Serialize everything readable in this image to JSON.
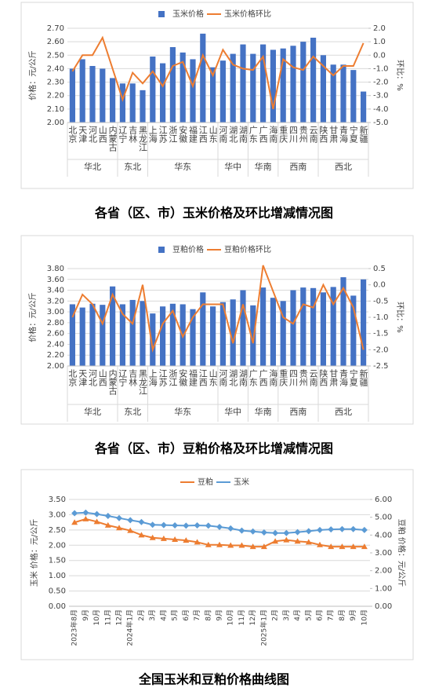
{
  "chart_data": [
    {
      "type": "bar_line",
      "title": "各省（区、市）玉米价格及环比增减情况图",
      "ylabel": "价格：元/公斤",
      "y2label": "环比：%",
      "categories": [
        "北京",
        "天津",
        "河北",
        "山西",
        "内蒙古",
        "辽宁",
        "吉林",
        "黑龙江",
        "上海",
        "江苏",
        "浙江",
        "安徽",
        "福建",
        "江西",
        "山东",
        "河南",
        "湖北",
        "湖南",
        "广东",
        "广西",
        "海南",
        "重庆",
        "四川",
        "贵州",
        "云南",
        "陕西",
        "甘肃",
        "青海",
        "宁夏",
        "新疆"
      ],
      "regions": [
        "华北",
        "华北",
        "华北",
        "华北",
        "华北",
        "东北",
        "东北",
        "东北",
        "华东",
        "华东",
        "华东",
        "华东",
        "华东",
        "华东",
        "华东",
        "华中",
        "华中",
        "华中",
        "华南",
        "华南",
        "华南",
        "西南",
        "西南",
        "西南",
        "西南",
        "西北",
        "西北",
        "西北",
        "西北",
        "西北"
      ],
      "series": [
        {
          "name": "玉米价格",
          "color": "#4472c4",
          "values": [
            2.4,
            2.47,
            2.42,
            2.4,
            2.33,
            2.29,
            2.29,
            2.24,
            2.49,
            2.44,
            2.56,
            2.52,
            2.47,
            2.66,
            2.41,
            2.46,
            2.51,
            2.58,
            2.51,
            2.58,
            2.54,
            2.55,
            2.57,
            2.6,
            2.63,
            2.5,
            2.43,
            2.43,
            2.39,
            2.23
          ]
        },
        {
          "name": "玉米价格环比",
          "color": "#ed7d31",
          "axis": "y2",
          "values": [
            -1.2,
            0.0,
            0.0,
            1.3,
            -1.0,
            -3.3,
            -1.3,
            -2.1,
            -1.2,
            -2.3,
            -0.8,
            -0.5,
            -2.3,
            0.0,
            -1.5,
            0.4,
            -0.7,
            -1.0,
            -1.1,
            -0.1,
            -4.0,
            -0.3,
            -0.9,
            -1.1,
            -0.1,
            -0.8,
            -1.5,
            -0.8,
            -0.8,
            0.9
          ]
        }
      ],
      "ylim": [
        2.0,
        2.7
      ],
      "yticks": [
        {
          "value": 2.0,
          "label": "2.00"
        },
        {
          "value": 2.1,
          "label": "2.10"
        },
        {
          "value": 2.2,
          "label": "2.20"
        },
        {
          "value": 2.3,
          "label": "2.30"
        },
        {
          "value": 2.4,
          "label": "2.40"
        },
        {
          "value": 2.5,
          "label": "2.50"
        },
        {
          "value": 2.6,
          "label": "2.60"
        },
        {
          "value": 2.7,
          "label": "2.70"
        }
      ],
      "y2lim": [
        -5,
        2
      ],
      "y2ticks": [
        {
          "value": 2,
          "label": "2.0"
        },
        {
          "value": 1,
          "label": "1.0"
        },
        {
          "value": 0,
          "label": "0.0"
        },
        {
          "value": -1,
          "label": "-1.0"
        },
        {
          "value": -2,
          "label": "-2.0"
        },
        {
          "value": -3,
          "label": "-3.0"
        },
        {
          "value": -4,
          "label": "-4.0"
        },
        {
          "value": -5,
          "label": "-5.0"
        }
      ]
    },
    {
      "type": "bar_line",
      "title": "各省（区、市）豆粕价格及环比增减情况图",
      "ylabel": "价格：元/公斤",
      "y2label": "环比：%",
      "categories": [
        "北京",
        "天津",
        "河北",
        "山西",
        "内蒙古",
        "辽宁",
        "吉林",
        "黑龙江",
        "上海",
        "江苏",
        "浙江",
        "安徽",
        "福建",
        "江西",
        "山东",
        "河南",
        "湖北",
        "湖南",
        "广东",
        "广西",
        "海南",
        "重庆",
        "四川",
        "贵州",
        "云南",
        "陕西",
        "甘肃",
        "青海",
        "宁夏",
        "新疆"
      ],
      "regions": [
        "华北",
        "华北",
        "华北",
        "华北",
        "华北",
        "东北",
        "东北",
        "东北",
        "华东",
        "华东",
        "华东",
        "华东",
        "华东",
        "华东",
        "华东",
        "华中",
        "华中",
        "华中",
        "华南",
        "华南",
        "华南",
        "西南",
        "西南",
        "西南",
        "西南",
        "西北",
        "西北",
        "西北",
        "西北",
        "西北"
      ],
      "series": [
        {
          "name": "豆粕价格",
          "color": "#4472c4",
          "values": [
            3.14,
            3.08,
            3.15,
            3.13,
            3.47,
            3.14,
            3.22,
            3.2,
            2.97,
            3.1,
            3.15,
            3.14,
            3.05,
            3.36,
            3.1,
            3.18,
            3.23,
            3.4,
            3.12,
            3.45,
            3.26,
            3.2,
            3.4,
            3.45,
            3.44,
            3.36,
            3.46,
            3.64,
            3.3,
            3.6
          ]
        },
        {
          "name": "豆粕价格环比",
          "color": "#ed7d31",
          "axis": "y2",
          "values": [
            -1.0,
            -0.3,
            -0.6,
            -1.2,
            -0.3,
            -0.9,
            -1.2,
            0.0,
            -2.0,
            -1.2,
            -0.8,
            -1.6,
            -1.0,
            -0.6,
            -0.6,
            -0.6,
            -1.8,
            -0.6,
            -1.8,
            0.6,
            -0.2,
            -1.0,
            -1.2,
            -0.6,
            -0.7,
            0.0,
            -0.6,
            -0.1,
            -0.7,
            -2.0
          ]
        }
      ],
      "ylim": [
        2.0,
        3.8
      ],
      "yticks": [
        {
          "value": 2.0,
          "label": "2.00"
        },
        {
          "value": 2.2,
          "label": "2.20"
        },
        {
          "value": 2.4,
          "label": "2.40"
        },
        {
          "value": 2.6,
          "label": "2.60"
        },
        {
          "value": 2.8,
          "label": "2.80"
        },
        {
          "value": 3.0,
          "label": "3.00"
        },
        {
          "value": 3.2,
          "label": "3.20"
        },
        {
          "value": 3.4,
          "label": "3.40"
        },
        {
          "value": 3.6,
          "label": "3.60"
        },
        {
          "value": 3.8,
          "label": "3.80"
        }
      ],
      "y2lim": [
        -2.5,
        0.5
      ],
      "y2ticks": [
        0.5,
        {
          "value": 0,
          "label": "0.0"
        },
        -0.5,
        {
          "value": -1,
          "label": "-1.0"
        },
        -1.5,
        {
          "value": -2,
          "label": "-2.0"
        },
        -2.5
      ]
    },
    {
      "type": "line",
      "title": "全国玉米和豆粕价格曲线图",
      "ylabel": "玉米 价格：元/公斤",
      "y2label": "豆粕 价格：元/公斤",
      "categories": [
        "2023年8月",
        "9月",
        "10月",
        "11月",
        "12月",
        "2024年1月",
        "2月",
        "3月",
        "4月",
        "5月",
        "6月",
        "7月",
        "8月",
        "9月",
        "10月",
        "11月",
        "12月",
        "2025年1月",
        "2月",
        "3月",
        "4月",
        "5月",
        "6月",
        "7月",
        "8月",
        "9月",
        "10月"
      ],
      "series": [
        {
          "name": "豆粕",
          "color": "#ed7d31",
          "axis": "y2",
          "values": [
            4.71,
            4.9,
            4.75,
            4.55,
            4.4,
            4.25,
            4.0,
            3.85,
            3.8,
            3.75,
            3.7,
            3.6,
            3.45,
            3.45,
            3.42,
            3.42,
            3.35,
            3.35,
            3.65,
            3.72,
            3.65,
            3.6,
            3.45,
            3.35,
            3.35,
            3.35,
            3.35
          ]
        },
        {
          "name": "玉米",
          "color": "#5b9bd5",
          "values": [
            3.05,
            3.07,
            3.02,
            2.96,
            2.89,
            2.82,
            2.76,
            2.67,
            2.66,
            2.65,
            2.64,
            2.65,
            2.64,
            2.6,
            2.55,
            2.48,
            2.45,
            2.42,
            2.4,
            2.4,
            2.43,
            2.46,
            2.5,
            2.52,
            2.53,
            2.53,
            2.5
          ]
        }
      ],
      "ylim": [
        0,
        3.5
      ],
      "yticks": [
        {
          "value": 0,
          "label": "0.00"
        },
        {
          "value": 0.5,
          "label": "0.50"
        },
        {
          "value": 1,
          "label": "1.00"
        },
        {
          "value": 1.5,
          "label": "1.50"
        },
        {
          "value": 2,
          "label": "2.00"
        },
        {
          "value": 2.5,
          "label": "2.50"
        },
        {
          "value": 3,
          "label": "3.00"
        },
        {
          "value": 3.5,
          "label": "3.50"
        }
      ],
      "y2lim": [
        0,
        6
      ],
      "y2ticks": [
        {
          "value": 0,
          "label": "0.00"
        },
        {
          "value": 1,
          "label": "1.00"
        },
        {
          "value": 2,
          "label": "2.00"
        },
        {
          "value": 3,
          "label": "3.00"
        },
        {
          "value": 4,
          "label": "4.00"
        },
        {
          "value": 5,
          "label": "5.00"
        },
        {
          "value": 6,
          "label": "6.00"
        }
      ]
    }
  ]
}
